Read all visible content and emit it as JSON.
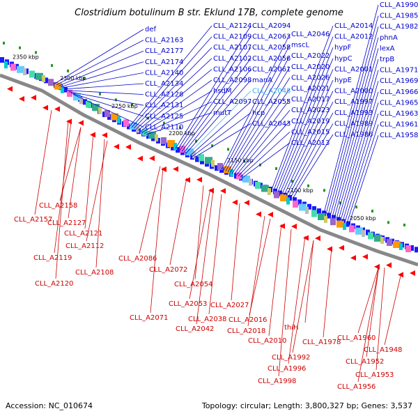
{
  "title": "Clostridium botulinum B str. Eklund 17B, complete genome",
  "footer": {
    "accession": "Accession: NC_010674",
    "summary": "Topology: circular; Length: 3,800,327 bp; Genes: 3,537"
  },
  "colors": {
    "forward_strand": "#1a1aff",
    "reverse_strand": "#ff0000",
    "forward_label": "#0000cc",
    "reverse_label": "#cc0000",
    "highlight_label": "#33aaee",
    "backbone": "#888888"
  },
  "ticks": [
    "2350 kbp",
    "2300 kbp",
    "2250 kbp",
    "2200 kbp",
    "2150 kbp",
    "2100 kbp",
    "2050 kbp"
  ],
  "forward_labels": [
    "CLL_A1990",
    "CLL_A1985",
    "CLL_A1982",
    "phnA",
    "lexA",
    "trpB",
    "CLL_A1971",
    "CLL_A1969",
    "CLL_A1966",
    "CLL_A1965",
    "CLL_A1963",
    "CLL_A1961",
    "CLL_A1958",
    "CLL_A2014",
    "CLL_A2012",
    "hypF",
    "hypC",
    "CLL_A2001",
    "hypE",
    "CLL_A2000",
    "CLL_A1997",
    "CLL_A1993",
    "CLL_A1989",
    "CLL_A1986",
    "CLL_A2046",
    "mscL",
    "CLL_A2022",
    "CLL_A2020",
    "CLL_A2026",
    "CLL_A2021",
    "CLL_A2017",
    "CLL_A2023",
    "CLL_A2019",
    "CLL_A2015",
    "CLL_A2013",
    "CLL_A2094",
    "CLL_A2063",
    "CLL_A2058",
    "CLL_A2056",
    "CLL_A2061",
    "manA",
    "CLL_A2048",
    "CLL_A2055",
    "hcp",
    "CLL_A2043",
    "CLL_A2124",
    "CLL_A2109",
    "CLL_A2107",
    "CLL_A2102",
    "CLL_A2106",
    "CLL_A2098",
    "hsdM",
    "CLL_A2097",
    "mutT",
    "def",
    "CLL_A2163",
    "CLL_A2177",
    "CLL_A2174",
    "CLL_A2140",
    "CLL_A2134",
    "CLL_A2128",
    "CLL_A2131",
    "CLL_A2125",
    "CLL_A2110"
  ],
  "reverse_labels": [
    "CLL_A2158",
    "CLL_A2157",
    "CLL_A2127",
    "CLL_A2121",
    "CLL_A2112",
    "CLL_A2119",
    "CLL_A2120",
    "CLL_A2108",
    "CLL_A2086",
    "CLL_A2072",
    "CLL_A2071",
    "CLL_A2054",
    "CLL_A2053",
    "CLL_A2042",
    "CLL_A2038",
    "CLL_A2027",
    "CLL_A2016",
    "CLL_A2018",
    "CLL_A2010",
    "thiH",
    "CLL_A1992",
    "CLL_A1996",
    "CLL_A1998",
    "CLL_A1978",
    "CLL_A1960",
    "CLL_A1948",
    "CLL_A1952",
    "CLL_A1953",
    "CLL_A1956"
  ]
}
